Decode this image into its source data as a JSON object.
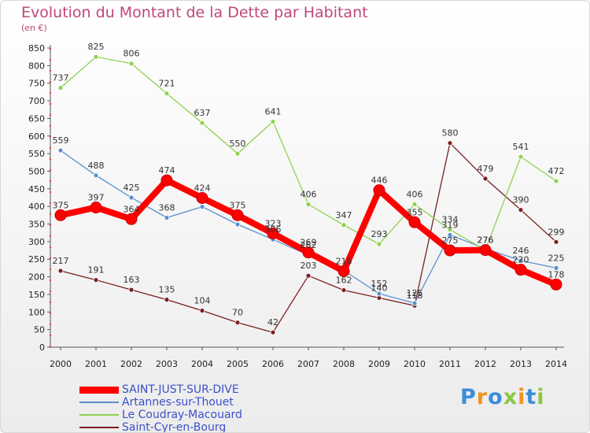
{
  "chart_data": {
    "type": "line",
    "title": "Evolution du Montant de la Dette par Habitant",
    "subtitle": "(en €)",
    "xlabel": "",
    "ylabel": "",
    "x": [
      2000,
      2001,
      2002,
      2003,
      2004,
      2005,
      2006,
      2007,
      2008,
      2009,
      2010,
      2011,
      2012,
      2013,
      2014
    ],
    "ylim": [
      0,
      850
    ],
    "yticks": [
      0,
      50,
      100,
      150,
      200,
      250,
      300,
      350,
      400,
      450,
      500,
      550,
      600,
      650,
      700,
      750,
      800,
      850
    ],
    "grid": false,
    "legend_position": "bottom-left",
    "series": [
      {
        "name": "SAINT-JUST-SUR-DIVE",
        "color": "#ff0000",
        "values": [
          375,
          397,
          364,
          474,
          424,
          375,
          323,
          269,
          216,
          446,
          355,
          275,
          276,
          220,
          178
        ]
      },
      {
        "name": "Artannes-sur-Thouet",
        "color": "#5b8fcf",
        "values": [
          559,
          488,
          425,
          368,
          399,
          349,
          306,
          262,
          218,
          152,
          125,
          319,
          280,
          246,
          225
        ]
      },
      {
        "name": "Le Coudray-Macouard",
        "color": "#8fd14f",
        "values": [
          737,
          825,
          806,
          721,
          637,
          550,
          641,
          406,
          347,
          293,
          406,
          334,
          276,
          541,
          472
        ]
      },
      {
        "name": "Saint-Cyr-en-Bourg",
        "color": "#7a1f1f",
        "values": [
          217,
          191,
          163,
          135,
          104,
          70,
          42,
          203,
          162,
          140,
          118,
          580,
          479,
          390,
          299
        ]
      }
    ],
    "value_labels": [
      {
        "series": 2,
        "values": [
          "737",
          "825",
          "806",
          "721",
          "637",
          "550",
          "641",
          "406",
          "347",
          "293",
          "406",
          "334",
          "276",
          "541",
          "472"
        ]
      },
      {
        "series": 1,
        "values": [
          "559",
          "488",
          "425",
          "368",
          "",
          "",
          "306",
          "262",
          "",
          "152",
          "125",
          "319",
          "",
          "246",
          "225"
        ]
      },
      {
        "series": 0,
        "values": [
          "375",
          "397",
          "364",
          "474",
          "424",
          "375",
          "323",
          "269",
          "216",
          "446",
          "355",
          "275",
          "276",
          "220",
          "178"
        ]
      },
      {
        "series": 3,
        "values": [
          "217",
          "191",
          "163",
          "135",
          "104",
          "70",
          "42",
          "203",
          "162",
          "140",
          "118",
          "580",
          "479",
          "390",
          "299"
        ]
      }
    ]
  },
  "legend": {
    "items": [
      "SAINT-JUST-SUR-DIVE",
      "Artannes-sur-Thouet",
      "Le Coudray-Macouard",
      "Saint-Cyr-en-Bourg"
    ]
  },
  "brand": {
    "letters": [
      "P",
      "r",
      "o",
      "x",
      "i",
      "t",
      "i"
    ],
    "colors": [
      "#3c8dd8",
      "#f0941e",
      "#3c8dd8",
      "#8cc63f",
      "#f0941e",
      "#3c8dd8",
      "#8cc63f"
    ]
  }
}
